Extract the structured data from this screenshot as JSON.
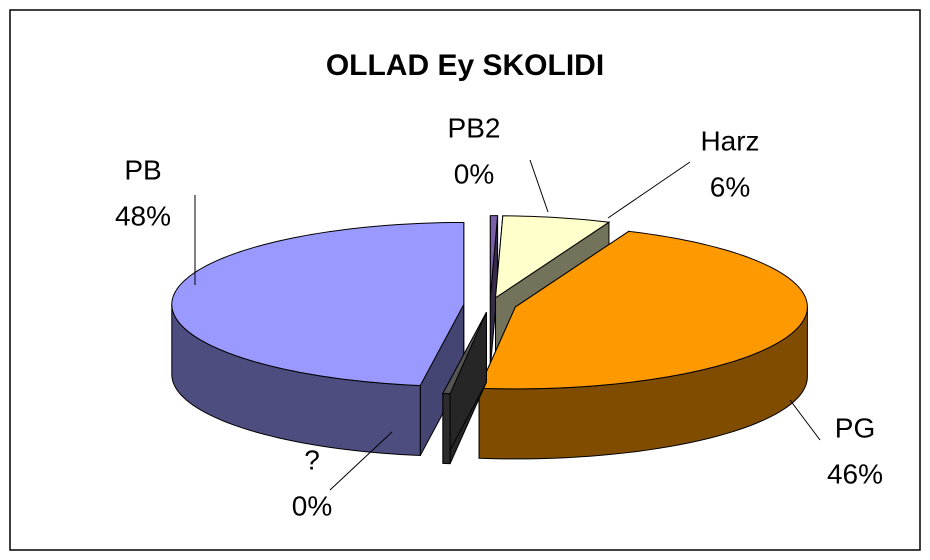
{
  "chart_data": {
    "type": "pie",
    "title": "OLLAD Ey SKOLIDI",
    "categories": [
      "PB2",
      "Harz",
      "PG",
      "?",
      "PB"
    ],
    "values": [
      0.4,
      6,
      46,
      0.4,
      48
    ],
    "value_labels": [
      "0%",
      "6%",
      "46%",
      "0%",
      "48%"
    ],
    "colors": [
      "#7a5fa8",
      "#ffffcc",
      "#ff9900",
      "#555555",
      "#9999ff"
    ],
    "three_d": true,
    "exploded": true
  }
}
